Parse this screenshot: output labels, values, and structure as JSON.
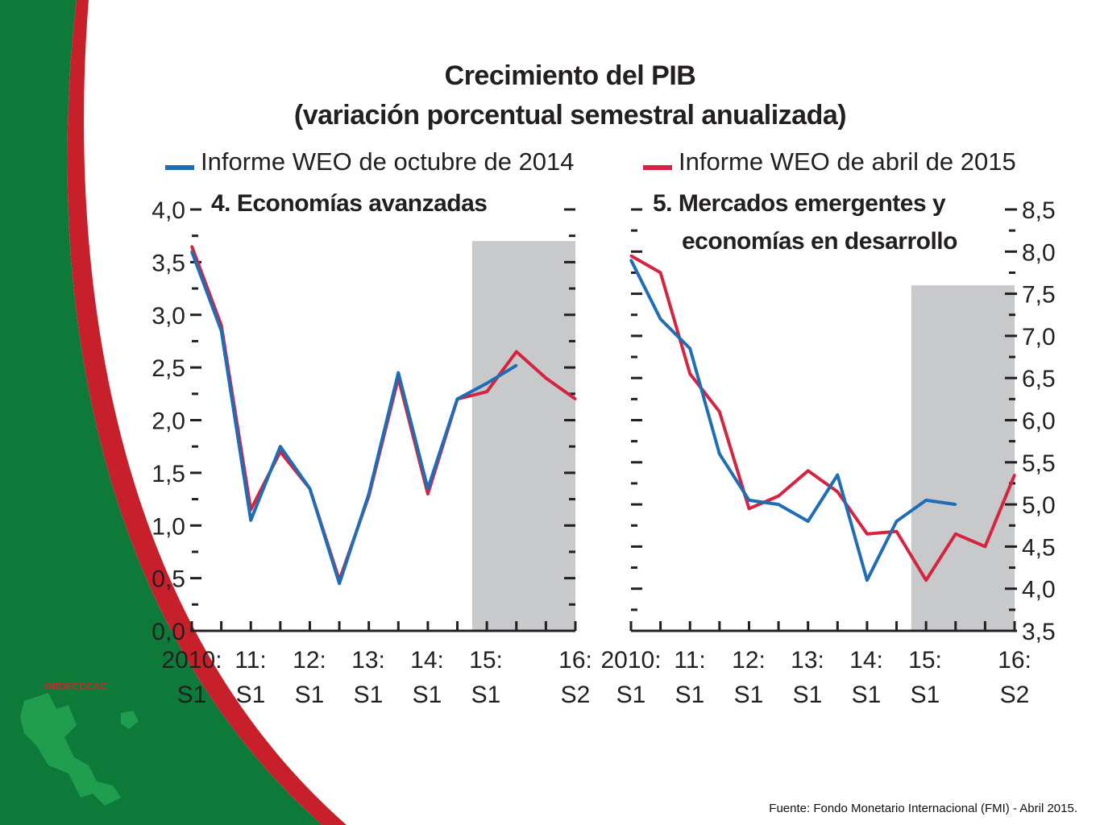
{
  "title": {
    "line1": "Crecimiento del PIB",
    "line2": "(variación porcentual semestral anualizada)"
  },
  "legend": [
    {
      "label": "Informe WEO de octubre de 2014",
      "color": "#1f6db5"
    },
    {
      "label": "Informe WEO de abril de 2015",
      "color": "#d6233f"
    }
  ],
  "source": "Fuente: Fondo Monetario Internacional (FMI) -  Abril 2015.",
  "organization": "ORDECCCAC",
  "colors": {
    "green": "#0e7a3a",
    "red_band": "#c8202b",
    "shade": "#c8c9cb"
  },
  "chart_data": [
    {
      "type": "line",
      "title": "4. Economías avanzadas",
      "x": [
        "2010:S1",
        "S2",
        "11:S1",
        "S2",
        "12:S1",
        "S2",
        "13:S1",
        "S2",
        "14:S1",
        "S2",
        "15:S1",
        "S2",
        "16:S1",
        "16:S2"
      ],
      "x_tick_labels": [
        {
          "top": "2010:",
          "bottom": "S1"
        },
        {
          "top": "11:",
          "bottom": "S1"
        },
        {
          "top": "12:",
          "bottom": "S1"
        },
        {
          "top": "13:",
          "bottom": "S1"
        },
        {
          "top": "14:",
          "bottom": "S1"
        },
        {
          "top": "15:",
          "bottom": "S1"
        },
        {
          "top": "16:",
          "bottom": "S2"
        }
      ],
      "y_tick_labels": [
        "0,0",
        "0,5",
        "1,0",
        "1,5",
        "2,0",
        "2,5",
        "3,0",
        "3,5",
        "4,0"
      ],
      "ylim": [
        0,
        4
      ],
      "y_axis_side": "left",
      "shaded_region": {
        "from_index": 9.5,
        "to_index": 13,
        "top": 3.7
      },
      "series": [
        {
          "name": "Informe WEO de octubre de 2014",
          "color": "#1f6db5",
          "values": [
            3.6,
            2.85,
            1.05,
            1.75,
            1.35,
            0.45,
            1.3,
            2.45,
            1.35,
            2.2,
            2.35,
            2.52,
            null,
            null
          ]
        },
        {
          "name": "Informe WEO de abril de 2015",
          "color": "#d6233f",
          "values": [
            3.65,
            2.9,
            1.15,
            1.7,
            1.35,
            0.48,
            1.28,
            2.4,
            1.3,
            2.2,
            2.27,
            2.65,
            2.4,
            2.2
          ]
        }
      ]
    },
    {
      "type": "line",
      "title": "5. Mercados emergentes y economías en desarrollo",
      "title_lines": [
        "5. Mercados emergentes y",
        "economías en desarrollo"
      ],
      "x": [
        "2010:S1",
        "S2",
        "11:S1",
        "S2",
        "12:S1",
        "S2",
        "13:S1",
        "S2",
        "14:S1",
        "S2",
        "15:S1",
        "S2",
        "16:S1",
        "16:S2"
      ],
      "x_tick_labels": [
        {
          "top": "2010:",
          "bottom": "S1"
        },
        {
          "top": "11:",
          "bottom": "S1"
        },
        {
          "top": "12:",
          "bottom": "S1"
        },
        {
          "top": "13:",
          "bottom": "S1"
        },
        {
          "top": "14:",
          "bottom": "S1"
        },
        {
          "top": "15:",
          "bottom": "S1"
        },
        {
          "top": "16:",
          "bottom": "S2"
        }
      ],
      "y_tick_labels": [
        "3,5",
        "4,0",
        "4,5",
        "5,0",
        "5,5",
        "6,0",
        "6,5",
        "7,0",
        "7,5",
        "8,0",
        "8,5"
      ],
      "ylim": [
        3.5,
        8.5
      ],
      "y_axis_side": "right",
      "shaded_region": {
        "from_index": 9.5,
        "to_index": 13,
        "top": 7.6
      },
      "series": [
        {
          "name": "Informe WEO de octubre de 2014",
          "color": "#1f6db5",
          "values": [
            7.9,
            7.2,
            6.85,
            5.6,
            5.05,
            5.0,
            4.8,
            5.35,
            4.1,
            4.8,
            5.05,
            5.0,
            null,
            null
          ]
        },
        {
          "name": "Informe WEO de abril de 2015",
          "color": "#d6233f",
          "values": [
            7.95,
            7.75,
            6.55,
            6.1,
            4.95,
            5.1,
            5.4,
            5.15,
            4.65,
            4.68,
            4.1,
            4.65,
            4.5,
            5.35
          ]
        }
      ]
    }
  ]
}
